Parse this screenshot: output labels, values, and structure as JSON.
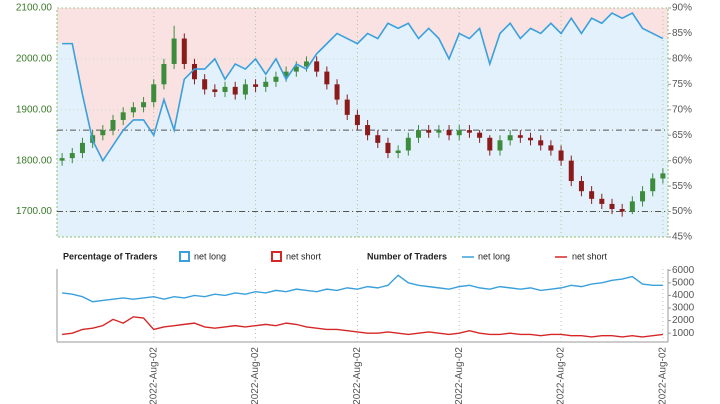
{
  "chart_data": [
    {
      "type": "candlestick",
      "open": [
        1800,
        1805,
        1815,
        1835,
        1850,
        1860,
        1880,
        1895,
        1905,
        1915,
        1950,
        1990,
        2040,
        1990,
        1960,
        1940,
        1935,
        1945,
        1930,
        1950,
        1945,
        1955,
        1965,
        1975,
        1985,
        1995,
        1975,
        1950,
        1920,
        1890,
        1870,
        1850,
        1835,
        1815,
        1820,
        1845,
        1860,
        1855,
        1860,
        1850,
        1860,
        1855,
        1845,
        1820,
        1840,
        1850,
        1845,
        1840,
        1830,
        1820,
        1800,
        1760,
        1740,
        1725,
        1715,
        1705,
        1700,
        1720,
        1740,
        1765
      ],
      "high": [
        1815,
        1825,
        1845,
        1860,
        1870,
        1890,
        1905,
        1915,
        1925,
        1960,
        2000,
        2065,
        2050,
        2000,
        1970,
        1950,
        1955,
        1955,
        1960,
        1960,
        1965,
        1975,
        1985,
        1995,
        2005,
        2005,
        1985,
        1960,
        1930,
        1900,
        1880,
        1860,
        1845,
        1830,
        1855,
        1870,
        1870,
        1870,
        1870,
        1870,
        1870,
        1860,
        1850,
        1850,
        1860,
        1860,
        1855,
        1850,
        1840,
        1830,
        1810,
        1770,
        1750,
        1735,
        1725,
        1715,
        1730,
        1750,
        1775,
        1785
      ],
      "low": [
        1790,
        1795,
        1805,
        1825,
        1840,
        1850,
        1870,
        1885,
        1895,
        1905,
        1940,
        1980,
        1980,
        1950,
        1930,
        1925,
        1925,
        1920,
        1920,
        1935,
        1935,
        1945,
        1955,
        1965,
        1975,
        1965,
        1940,
        1910,
        1880,
        1860,
        1840,
        1825,
        1805,
        1805,
        1810,
        1835,
        1845,
        1845,
        1840,
        1840,
        1845,
        1835,
        1810,
        1810,
        1830,
        1835,
        1830,
        1820,
        1810,
        1790,
        1750,
        1730,
        1715,
        1705,
        1695,
        1690,
        1695,
        1710,
        1730,
        1755
      ],
      "close": [
        1805,
        1815,
        1835,
        1850,
        1860,
        1880,
        1895,
        1905,
        1915,
        1950,
        1990,
        2040,
        1990,
        1960,
        1940,
        1935,
        1945,
        1930,
        1950,
        1945,
        1955,
        1965,
        1975,
        1985,
        1995,
        1975,
        1950,
        1920,
        1890,
        1870,
        1850,
        1835,
        1815,
        1820,
        1845,
        1860,
        1855,
        1860,
        1850,
        1860,
        1855,
        1845,
        1820,
        1840,
        1850,
        1845,
        1840,
        1830,
        1820,
        1800,
        1760,
        1740,
        1725,
        1715,
        1705,
        1700,
        1720,
        1740,
        1765,
        1775
      ],
      "up_color": "#3c8c3c",
      "down_color": "#8b1a1a",
      "ylim": [
        1650,
        2100
      ],
      "yticks": [
        {
          "value": 1700,
          "label": "1700.00"
        },
        {
          "value": 1800,
          "label": "1800.00"
        },
        {
          "value": 1900,
          "label": "1900.00"
        },
        {
          "value": 2000,
          "label": "2000.00"
        },
        {
          "value": 2100,
          "label": "2100.00"
        }
      ],
      "y2lim": [
        45,
        90
      ],
      "y2ticks": [
        {
          "value": 45,
          "label": "45%"
        },
        {
          "value": 50,
          "label": "50%"
        },
        {
          "value": 55,
          "label": "55%"
        },
        {
          "value": 60,
          "label": "60%"
        },
        {
          "value": 65,
          "label": "65%"
        },
        {
          "value": 70,
          "label": "70%"
        },
        {
          "value": 75,
          "label": "75%"
        },
        {
          "value": 80,
          "label": "80%"
        },
        {
          "value": 85,
          "label": "85%"
        },
        {
          "value": 90,
          "label": "90%"
        }
      ],
      "reference_lines": [
        1860,
        1700
      ],
      "grid": true,
      "legend_title": "Percentage of Traders",
      "series": [
        {
          "name": "net long",
          "color": "#3aa0dc",
          "fill": "#e2f1fb",
          "axis": "y2",
          "values": [
            83,
            83,
            73,
            64,
            60,
            63,
            66,
            68,
            68,
            65,
            72,
            66,
            76,
            78,
            78,
            80,
            76,
            79,
            78,
            80,
            77,
            80,
            76,
            79,
            78,
            81,
            83,
            85,
            84,
            83,
            85,
            84,
            87,
            86,
            87,
            84,
            86,
            84,
            80,
            85,
            84,
            86,
            79,
            85,
            87,
            84,
            86,
            85,
            87,
            85,
            88,
            85,
            88,
            87,
            89,
            88,
            89,
            86,
            85,
            84
          ]
        },
        {
          "name": "net short",
          "color": "#d62728",
          "fill": "#fbe2e2"
        }
      ]
    },
    {
      "type": "line",
      "legend_title": "Number of Traders",
      "categories": [
        null,
        null,
        null,
        null,
        null,
        null,
        null,
        null,
        null,
        "2022-Aug-02",
        null,
        null,
        null,
        null,
        null,
        null,
        null,
        null,
        null,
        "2022-Aug-02",
        null,
        null,
        null,
        null,
        null,
        null,
        null,
        null,
        null,
        "2022-Aug-02",
        null,
        null,
        null,
        null,
        null,
        null,
        null,
        null,
        null,
        "2022-Aug-02",
        null,
        null,
        null,
        null,
        null,
        null,
        null,
        null,
        null,
        "2022-Aug-02",
        null,
        null,
        null,
        null,
        null,
        null,
        null,
        null,
        null,
        "2022-Aug-02"
      ],
      "ylim": [
        300,
        6100
      ],
      "yticks": [
        1000,
        2000,
        3000,
        4000,
        5000,
        6000
      ],
      "series": [
        {
          "name": "net long",
          "color": "#3aa0dc",
          "values": [
            4200,
            4100,
            3900,
            3500,
            3600,
            3700,
            3800,
            3700,
            3800,
            3900,
            3700,
            3900,
            3800,
            4000,
            3900,
            4100,
            4000,
            4200,
            4100,
            4300,
            4200,
            4400,
            4300,
            4500,
            4400,
            4300,
            4500,
            4400,
            4600,
            4500,
            4700,
            4600,
            4800,
            5600,
            5000,
            4800,
            4700,
            4600,
            4500,
            4700,
            4800,
            4600,
            4500,
            4700,
            4600,
            4500,
            4600,
            4400,
            4500,
            4600,
            4800,
            4700,
            4900,
            5000,
            5200,
            5300,
            5500,
            4900,
            4800,
            4800
          ]
        },
        {
          "name": "net short",
          "color": "#d62728",
          "values": [
            900,
            1000,
            1300,
            1400,
            1600,
            2100,
            1800,
            2300,
            2200,
            1300,
            1500,
            1600,
            1700,
            1800,
            1500,
            1400,
            1500,
            1600,
            1500,
            1600,
            1700,
            1600,
            1800,
            1700,
            1500,
            1400,
            1300,
            1300,
            1200,
            1100,
            1000,
            1000,
            1100,
            1000,
            900,
            1000,
            1100,
            1000,
            900,
            1000,
            1200,
            1000,
            900,
            900,
            1000,
            900,
            900,
            800,
            900,
            900,
            800,
            800,
            700,
            800,
            800,
            700,
            800,
            700,
            800,
            900
          ]
        }
      ]
    }
  ]
}
